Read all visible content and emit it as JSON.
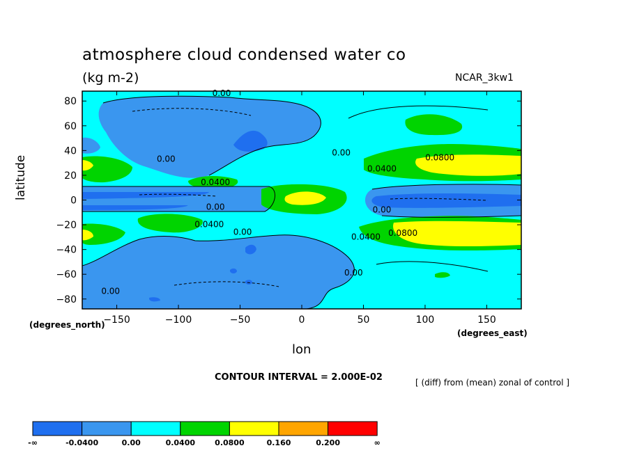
{
  "header": {
    "title": "atmosphere cloud condensed water co",
    "units": "(kg m-2)",
    "dataset_tag": "NCAR_3kw1"
  },
  "chart_data": {
    "type": "heatmap",
    "title": "atmosphere cloud condensed water co",
    "subtitle": "(kg m-2)",
    "xlabel": "lon",
    "xlabel_units": "(degrees_east)",
    "ylabel": "latitude",
    "ylabel_units": "(degrees_north)",
    "xlim": [
      -178,
      178
    ],
    "ylim": [
      -88,
      88
    ],
    "xticks": [
      -150,
      -100,
      -50,
      0,
      50,
      100,
      150
    ],
    "yticks": [
      80,
      60,
      40,
      20,
      0,
      -20,
      -40,
      -60,
      -80
    ],
    "contour_interval": "CONTOUR INTERVAL = 2.000E-02",
    "note": "[ (diff) from (mean) zonal of control ]",
    "colors": {
      "lt_m004": "#1f6fef",
      "m004_0": "#3a96ef",
      "0_004": "#00ffff",
      "004_008": "#00d400",
      "008_016": "#ffff00",
      "016_020": "#ffa500",
      "gt_020": "#ff0000"
    },
    "colorbar": {
      "labels": [
        "-∞",
        "-0.0400",
        "0.00",
        "0.0400",
        "0.0800",
        "0.160",
        "0.200",
        "∞"
      ],
      "colors": [
        "#1f6fef",
        "#3a96ef",
        "#00ffff",
        "#00d400",
        "#ffff00",
        "#ffa500",
        "#ff0000"
      ]
    },
    "contour_labels": [
      {
        "text": "0.00",
        "lon": -65,
        "lat": 84
      },
      {
        "text": "0.00",
        "lon": -110,
        "lat": 31
      },
      {
        "text": "0.00",
        "lon": 32,
        "lat": 36
      },
      {
        "text": "0.0400",
        "lon": 65,
        "lat": 23
      },
      {
        "text": "0.0800",
        "lon": 112,
        "lat": 32
      },
      {
        "text": "0.0400",
        "lon": -70,
        "lat": 12
      },
      {
        "text": "0.00",
        "lon": -70,
        "lat": -8
      },
      {
        "text": "0.00",
        "lon": 65,
        "lat": -10
      },
      {
        "text": "0.0400",
        "lon": -75,
        "lat": -22
      },
      {
        "text": "0.00",
        "lon": -48,
        "lat": -28
      },
      {
        "text": "0.0400",
        "lon": 52,
        "lat": -32
      },
      {
        "text": "0.0800",
        "lon": 82,
        "lat": -29
      },
      {
        "text": "0.00",
        "lon": 42,
        "lat": -61
      },
      {
        "text": "0.00",
        "lon": -155,
        "lat": -76
      }
    ]
  }
}
